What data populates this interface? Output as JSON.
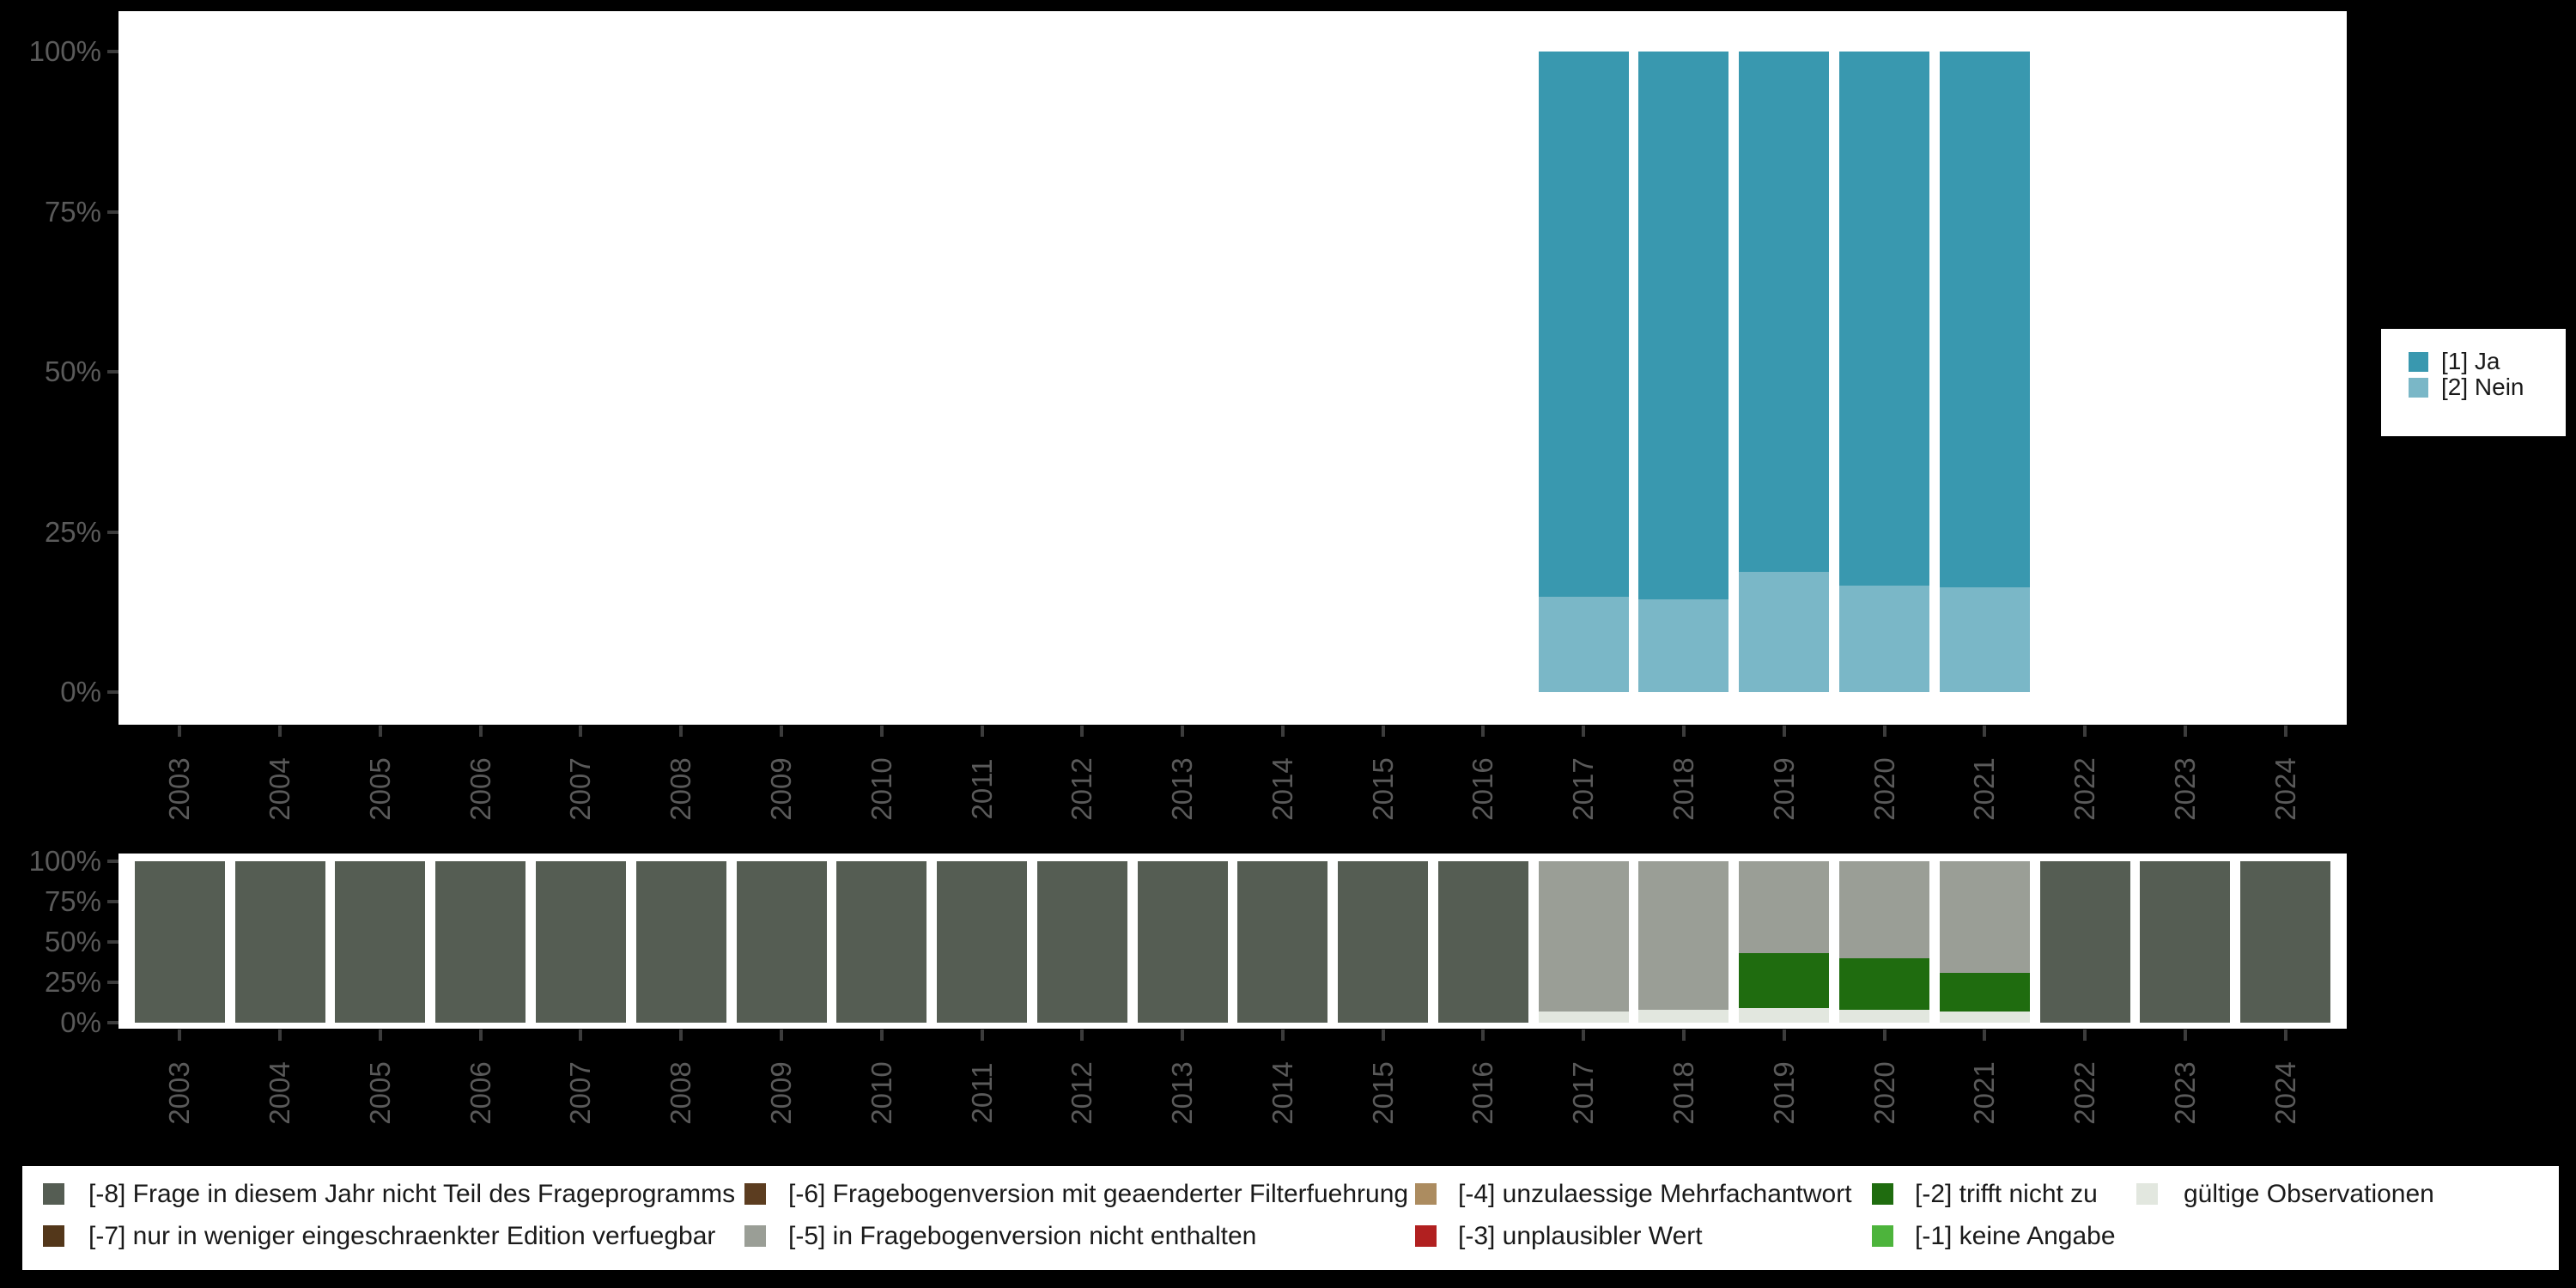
{
  "page": {
    "background": "#000000",
    "plot_background": "#ffffff"
  },
  "axis_style": {
    "label_color": "#5a5a5a",
    "tick_color": "#3c3c3c"
  },
  "chart_data": [
    {
      "type": "bar",
      "stacked": true,
      "title": "",
      "xlabel": "",
      "ylabel": "",
      "ylim": [
        0,
        100
      ],
      "grid": false,
      "yticks": [
        "0%",
        "25%",
        "50%",
        "75%",
        "100%"
      ],
      "ytick_values": [
        0,
        25,
        50,
        75,
        100
      ],
      "categories": [
        "2003",
        "2004",
        "2005",
        "2006",
        "2007",
        "2008",
        "2009",
        "2010",
        "2011",
        "2012",
        "2013",
        "2014",
        "2015",
        "2016",
        "2017",
        "2018",
        "2019",
        "2020",
        "2021",
        "2022",
        "2023",
        "2024"
      ],
      "legend_position": "right",
      "series": [
        {
          "name": "[2] Nein",
          "color": "#7AB7C7",
          "values": [
            0,
            0,
            0,
            0,
            0,
            0,
            0,
            0,
            0,
            0,
            0,
            0,
            0,
            0,
            14.9,
            14.5,
            18.8,
            16.6,
            16.4,
            0,
            0,
            0
          ]
        },
        {
          "name": "[1] Ja",
          "color": "#3998AF",
          "values": [
            0,
            0,
            0,
            0,
            0,
            0,
            0,
            0,
            0,
            0,
            0,
            0,
            0,
            0,
            85.1,
            85.5,
            81.2,
            83.4,
            83.6,
            0,
            0,
            0
          ]
        }
      ]
    },
    {
      "type": "bar",
      "stacked": true,
      "title": "",
      "xlabel": "",
      "ylabel": "",
      "ylim": [
        0,
        100
      ],
      "grid": false,
      "yticks": [
        "0%",
        "25%",
        "50%",
        "75%",
        "100%"
      ],
      "ytick_values": [
        0,
        25,
        50,
        75,
        100
      ],
      "categories": [
        "2003",
        "2004",
        "2005",
        "2006",
        "2007",
        "2008",
        "2009",
        "2010",
        "2011",
        "2012",
        "2013",
        "2014",
        "2015",
        "2016",
        "2017",
        "2018",
        "2019",
        "2020",
        "2021",
        "2022",
        "2023",
        "2024"
      ],
      "legend_position": "bottom",
      "series": [
        {
          "name": "gültige Observationen",
          "color": "#E2E7DF",
          "values": [
            0,
            0,
            0,
            0,
            0,
            0,
            0,
            0,
            0,
            0,
            0,
            0,
            0,
            0,
            6.8,
            7.6,
            8.6,
            7.9,
            6.8,
            0,
            0,
            0
          ]
        },
        {
          "name": "[-1] keine Angabe",
          "color": "#4DB43C",
          "values": [
            0,
            0,
            0,
            0,
            0,
            0,
            0,
            0,
            0,
            0,
            0,
            0,
            0,
            0,
            0,
            0,
            0,
            0,
            0,
            0,
            0,
            0
          ]
        },
        {
          "name": "[-2] trifft nicht zu",
          "color": "#1F6C0F",
          "values": [
            0,
            0,
            0,
            0,
            0,
            0,
            0,
            0,
            0,
            0,
            0,
            0,
            0,
            0,
            0,
            0,
            34.3,
            32.1,
            24.0,
            0,
            0,
            0
          ]
        },
        {
          "name": "[-3] unplausibler Wert",
          "color": "#B12020",
          "values": [
            0,
            0,
            0,
            0,
            0,
            0,
            0,
            0,
            0,
            0,
            0,
            0,
            0,
            0,
            0,
            0,
            0,
            0,
            0,
            0,
            0,
            0
          ]
        },
        {
          "name": "[-4] unzulaessige Mehrfachantwort",
          "color": "#AC8C60",
          "values": [
            0,
            0,
            0,
            0,
            0,
            0,
            0,
            0,
            0,
            0,
            0,
            0,
            0,
            0,
            0,
            0,
            0,
            0,
            0,
            0,
            0,
            0
          ]
        },
        {
          "name": "[-5] in Fragebogenversion nicht enthalten",
          "color": "#9A9E96",
          "values": [
            0,
            0,
            0,
            0,
            0,
            0,
            0,
            0,
            0,
            0,
            0,
            0,
            0,
            0,
            93.2,
            92.4,
            57.1,
            60.0,
            69.2,
            0,
            0,
            0
          ]
        },
        {
          "name": "[-6] Fragebogenversion mit geaenderter Filterfuehrung",
          "color": "#5C3D20",
          "values": [
            0,
            0,
            0,
            0,
            0,
            0,
            0,
            0,
            0,
            0,
            0,
            0,
            0,
            0,
            0,
            0,
            0,
            0,
            0,
            0,
            0,
            0
          ]
        },
        {
          "name": "[-7] nur in weniger eingeschraenkter Edition verfuegbar",
          "color": "#53371A",
          "values": [
            0,
            0,
            0,
            0,
            0,
            0,
            0,
            0,
            0,
            0,
            0,
            0,
            0,
            0,
            0,
            0,
            0,
            0,
            0,
            0,
            0,
            0
          ]
        },
        {
          "name": "[-8] Frage in diesem Jahr nicht Teil des Frageprogramms",
          "color": "#555D53",
          "values": [
            100,
            100,
            100,
            100,
            100,
            100,
            100,
            100,
            100,
            100,
            100,
            100,
            100,
            100,
            0,
            0,
            0,
            0,
            0,
            100,
            100,
            100
          ]
        }
      ]
    }
  ],
  "top_legend": {
    "items": [
      {
        "label": "[1] Ja",
        "color": "#3998AF"
      },
      {
        "label": "[2] Nein",
        "color": "#7AB7C7"
      }
    ]
  },
  "bottom_legend": {
    "columns": [
      {
        "items": [
          {
            "label": "[-8] Frage in diesem Jahr nicht Teil des Frageprogramms",
            "color": "#555D53"
          },
          {
            "label": "[-7] nur in weniger eingeschraenkter Edition verfuegbar",
            "color": "#53371A"
          }
        ]
      },
      {
        "items": [
          {
            "label": "[-6] Fragebogenversion mit geaenderter Filterfuehrung",
            "color": "#5C3D20"
          },
          {
            "label": "[-5] in Fragebogenversion nicht enthalten",
            "color": "#9A9E96"
          }
        ]
      },
      {
        "items": [
          {
            "label": "[-4] unzulaessige Mehrfachantwort",
            "color": "#AC8C60"
          },
          {
            "label": "[-3] unplausibler Wert",
            "color": "#B12020"
          }
        ]
      },
      {
        "items": [
          {
            "label": "[-2] trifft nicht zu",
            "color": "#1F6C0F"
          },
          {
            "label": "[-1] keine Angabe",
            "color": "#4DB43C"
          }
        ]
      },
      {
        "items": [
          {
            "label": "gültige Observationen",
            "color": "#E2E7DF"
          }
        ]
      }
    ]
  }
}
